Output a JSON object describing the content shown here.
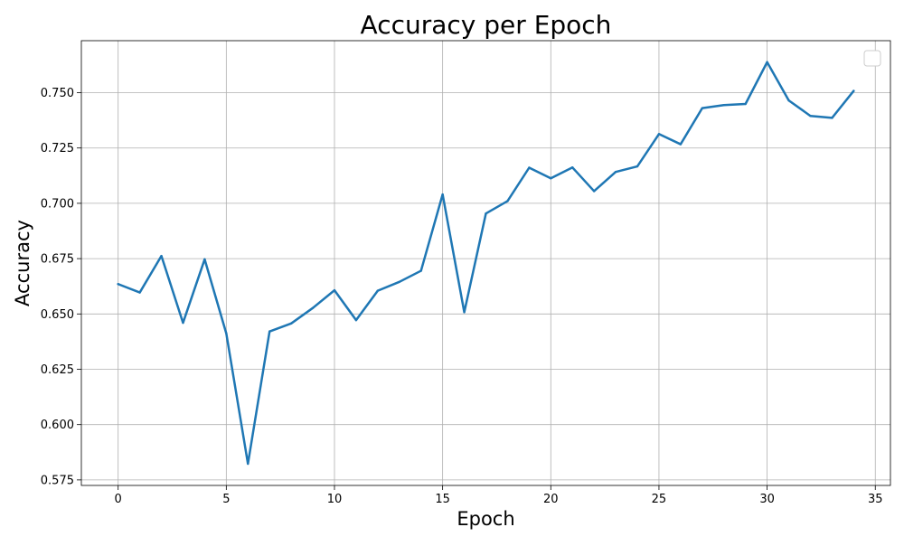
{
  "chart_data": {
    "type": "line",
    "title": "Accuracy per Epoch",
    "xlabel": "Epoch",
    "ylabel": "Accuracy",
    "xlim": [
      -1.7,
      35.7
    ],
    "ylim": [
      0.5725,
      0.7735
    ],
    "x_ticks": [
      0,
      5,
      10,
      15,
      20,
      25,
      30,
      35
    ],
    "y_ticks": [
      0.575,
      0.6,
      0.625,
      0.65,
      0.675,
      0.7,
      0.725,
      0.75
    ],
    "grid": true,
    "legend": {
      "placement": "top-right",
      "entries": []
    },
    "series": [
      {
        "color": "#1f77b4",
        "x": [
          0,
          1,
          2,
          3,
          4,
          5,
          6,
          7,
          8,
          9,
          10,
          11,
          12,
          13,
          14,
          15,
          16,
          17,
          18,
          19,
          20,
          21,
          22,
          23,
          24,
          25,
          26,
          27,
          28,
          29,
          30,
          31,
          32,
          33,
          34
        ],
        "values": [
          0.6635,
          0.6597,
          0.6762,
          0.646,
          0.6747,
          0.6412,
          0.5823,
          0.6421,
          0.6457,
          0.6527,
          0.6607,
          0.6472,
          0.6605,
          0.6645,
          0.6695,
          0.704,
          0.6508,
          0.6954,
          0.701,
          0.7161,
          0.7113,
          0.7162,
          0.7055,
          0.7142,
          0.7167,
          0.7313,
          0.7267,
          0.743,
          0.7444,
          0.7449,
          0.7638,
          0.7465,
          0.7395,
          0.7386,
          0.7508
        ]
      }
    ]
  },
  "colors": {
    "line": "#1f77b4",
    "grid": "#b0b0b0",
    "axes": "#000000"
  }
}
